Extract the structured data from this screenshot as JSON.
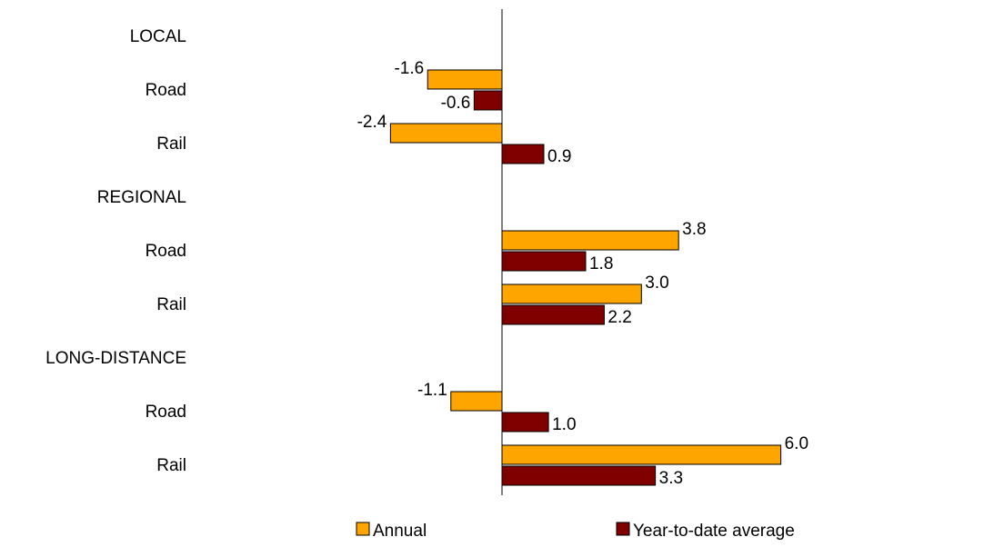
{
  "chart_data": {
    "type": "bar",
    "orientation": "horizontal",
    "title": "",
    "xlabel": "",
    "ylabel": "",
    "xlim": [
      -3.0,
      6.0
    ],
    "grid": false,
    "legend_position": "bottom",
    "rows": [
      {
        "label": "LOCAL",
        "kind": "group"
      },
      {
        "label": "Road",
        "kind": "item",
        "annual": -1.6,
        "ytd": -0.6
      },
      {
        "label": "Rail",
        "kind": "item",
        "annual": -2.4,
        "ytd": 0.9
      },
      {
        "label": "REGIONAL",
        "kind": "group"
      },
      {
        "label": "Road",
        "kind": "item",
        "annual": 3.8,
        "ytd": 1.8
      },
      {
        "label": "Rail",
        "kind": "item",
        "annual": 3.0,
        "ytd": 2.2
      },
      {
        "label": "LONG-DISTANCE",
        "kind": "group"
      },
      {
        "label": "Road",
        "kind": "item",
        "annual": -1.1,
        "ytd": 1.0
      },
      {
        "label": "Rail",
        "kind": "item",
        "annual": 6.0,
        "ytd": 3.3
      }
    ],
    "series": [
      {
        "key": "annual",
        "name": "Annual",
        "color": "#FFA500"
      },
      {
        "key": "ytd",
        "name": "Year-to-date average",
        "color": "#800000"
      }
    ]
  }
}
